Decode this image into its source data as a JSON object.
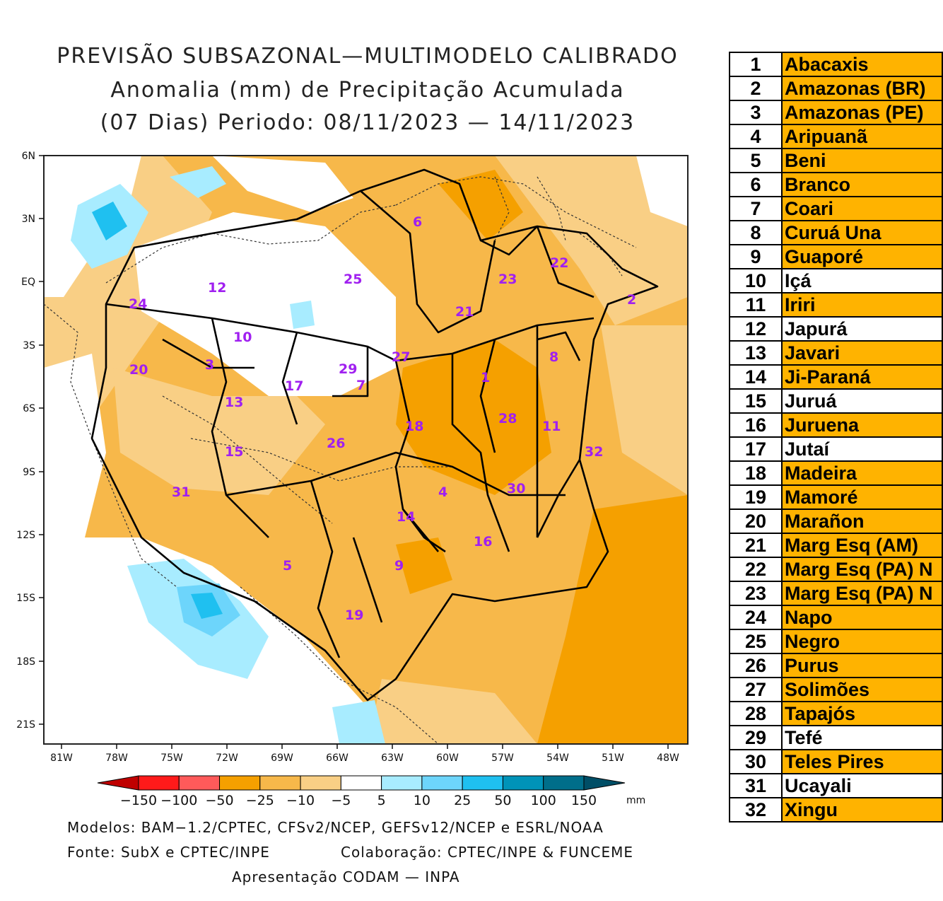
{
  "title": {
    "line1": "PREVISÃO SUBSAZONAL—MULTIMODELO CALIBRADO",
    "line2": "Anomalia (mm) de Precipitação Acumulada",
    "line3": "(07 Dias) Periodo: 08/11/2023 — 14/11/2023"
  },
  "axes": {
    "lat_labels": [
      "6N",
      "3N",
      "EQ",
      "3S",
      "6S",
      "9S",
      "12S",
      "15S",
      "18S",
      "21S"
    ],
    "lon_labels": [
      "81W",
      "78W",
      "75W",
      "72W",
      "69W",
      "66W",
      "63W",
      "60W",
      "57W",
      "54W",
      "51W",
      "48W"
    ]
  },
  "colorbar": {
    "labels": [
      "−150",
      "−100",
      "−50",
      "−25",
      "−10",
      "−5",
      "5",
      "10",
      "25",
      "50",
      "100",
      "150"
    ],
    "unit": "mm",
    "colors": [
      "#c00000",
      "#ff1a1a",
      "#ff5a5a",
      "#f5a000",
      "#f7b84a",
      "#f9cf85",
      "#ffffff",
      "#a8ecff",
      "#6dd5fb",
      "#1fc0f0",
      "#0093b8",
      "#006e8a",
      "#004e66"
    ]
  },
  "credits": {
    "models": "Modelos: BAM−1.2/CPTEC, CFSv2/NCEP, GEFSv12/NCEP e ESRL/NOAA",
    "source": "Fonte: SubX e CPTEC/INPE",
    "collab": "Colaboração: CPTEC/INPE & FUNCEME",
    "presentation": "Apresentação CODAM — INPA"
  },
  "basin_labels": [
    "1",
    "2",
    "3",
    "4",
    "5",
    "6",
    "7",
    "8",
    "9",
    "10",
    "11",
    "12",
    "13",
    "14",
    "15",
    "16",
    "17",
    "18",
    "19",
    "20",
    "21",
    "22",
    "23",
    "24",
    "25",
    "26",
    "27",
    "28",
    "29",
    "30",
    "31",
    "32"
  ],
  "table": [
    {
      "num": "1",
      "name": "Abacaxis",
      "color": "#ffb300"
    },
    {
      "num": "2",
      "name": "Amazonas (BR)",
      "color": "#ffb300"
    },
    {
      "num": "3",
      "name": "Amazonas (PE)",
      "color": "#ffb300"
    },
    {
      "num": "4",
      "name": "Aripuanã",
      "color": "#ffb300"
    },
    {
      "num": "5",
      "name": "Beni",
      "color": "#ffb300"
    },
    {
      "num": "6",
      "name": "Branco",
      "color": "#ffb300"
    },
    {
      "num": "7",
      "name": "Coari",
      "color": "#ffb300"
    },
    {
      "num": "8",
      "name": "Curuá Una",
      "color": "#ffb300"
    },
    {
      "num": "9",
      "name": "Guaporé",
      "color": "#ffb300"
    },
    {
      "num": "10",
      "name": "Içá",
      "color": "#ffffff"
    },
    {
      "num": "11",
      "name": "Iriri",
      "color": "#ffb300"
    },
    {
      "num": "12",
      "name": "Japurá",
      "color": "#ffffff"
    },
    {
      "num": "13",
      "name": "Javari",
      "color": "#ffb300"
    },
    {
      "num": "14",
      "name": "Ji-Paraná",
      "color": "#ffb300"
    },
    {
      "num": "15",
      "name": "Juruá",
      "color": "#ffffff"
    },
    {
      "num": "16",
      "name": "Juruena",
      "color": "#ffb300"
    },
    {
      "num": "17",
      "name": "Jutaí",
      "color": "#ffffff"
    },
    {
      "num": "18",
      "name": "Madeira",
      "color": "#ffb300"
    },
    {
      "num": "19",
      "name": "Mamoré",
      "color": "#ffb300"
    },
    {
      "num": "20",
      "name": "Marañon",
      "color": "#ffb300"
    },
    {
      "num": "21",
      "name": "Marg Esq (AM)",
      "color": "#ffb300"
    },
    {
      "num": "22",
      "name": "Marg Esq (PA) N",
      "color": "#ffb300"
    },
    {
      "num": "23",
      "name": "Marg Esq (PA) N",
      "color": "#ffb300"
    },
    {
      "num": "24",
      "name": "Napo",
      "color": "#ffb300"
    },
    {
      "num": "25",
      "name": "Negro",
      "color": "#ffb300"
    },
    {
      "num": "26",
      "name": "Purus",
      "color": "#ffb300"
    },
    {
      "num": "27",
      "name": "Solimões",
      "color": "#ffb300"
    },
    {
      "num": "28",
      "name": "Tapajós",
      "color": "#ffb300"
    },
    {
      "num": "29",
      "name": "Tefé",
      "color": "#ffffff"
    },
    {
      "num": "30",
      "name": "Teles Pires",
      "color": "#ffb300"
    },
    {
      "num": "31",
      "name": "Ucayali",
      "color": "#ffffff"
    },
    {
      "num": "32",
      "name": "Xingu",
      "color": "#ffb300"
    }
  ]
}
